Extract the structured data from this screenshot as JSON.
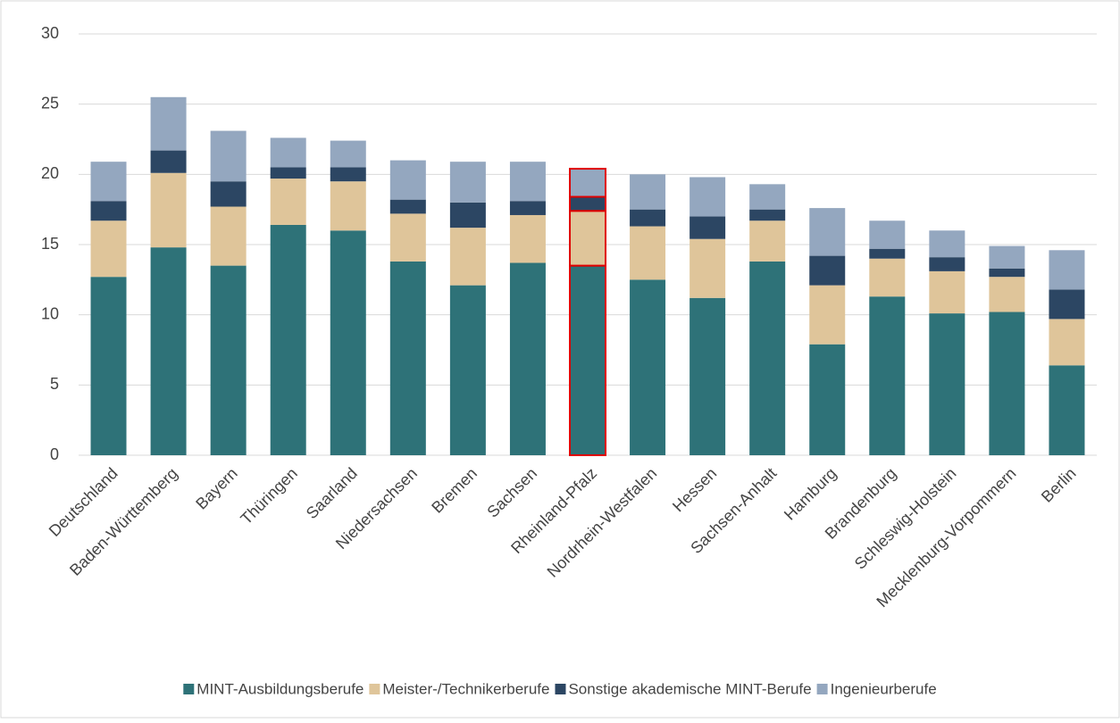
{
  "chart_data": {
    "type": "stacked_bar",
    "categories": [
      "Deutschland",
      "Baden-Württemberg",
      "Bayern",
      "Thüringen",
      "Saarland",
      "Niedersachsen",
      "Bremen",
      "Sachsen",
      "Rheinland-Pfalz",
      "Nordrhein-Westfalen",
      "Hessen",
      "Sachsen-Anhalt",
      "Hamburg",
      "Brandenburg",
      "Schleswig-Holstein",
      "Mecklenburg-Vorpommern",
      "Berlin"
    ],
    "series": [
      {
        "name": "MINT-Ausbildungsberufe",
        "color": "#2e7278",
        "values": [
          12.7,
          14.8,
          13.5,
          16.4,
          16.0,
          13.8,
          12.1,
          13.7,
          13.5,
          12.5,
          11.2,
          13.8,
          7.9,
          11.3,
          10.1,
          10.2,
          6.4
        ]
      },
      {
        "name": "Meister-/Technikerberufe",
        "color": "#dfc59a",
        "values": [
          4.0,
          5.3,
          4.2,
          3.3,
          3.5,
          3.4,
          4.1,
          3.4,
          3.9,
          3.8,
          4.2,
          2.9,
          4.2,
          2.7,
          3.0,
          2.5,
          3.3
        ]
      },
      {
        "name": "Sonstige akademische MINT-Berufe",
        "color": "#2c4663",
        "values": [
          1.4,
          1.6,
          1.8,
          0.8,
          1.0,
          1.0,
          1.8,
          1.0,
          1.0,
          1.2,
          1.6,
          0.8,
          2.1,
          0.7,
          1.0,
          0.6,
          2.1
        ]
      },
      {
        "name": "Ingenieurberufe",
        "color": "#94a7bf",
        "values": [
          2.8,
          3.8,
          3.6,
          2.1,
          1.9,
          2.8,
          2.9,
          2.8,
          2.0,
          2.5,
          2.8,
          1.8,
          3.4,
          2.0,
          1.9,
          1.6,
          2.8
        ]
      }
    ],
    "ylim": [
      0,
      30
    ],
    "yticks": [
      0,
      5,
      10,
      15,
      20,
      25,
      30
    ],
    "grid": true,
    "legend": "bottom",
    "highlight_index": 8,
    "highlight_color": "#e00000"
  }
}
